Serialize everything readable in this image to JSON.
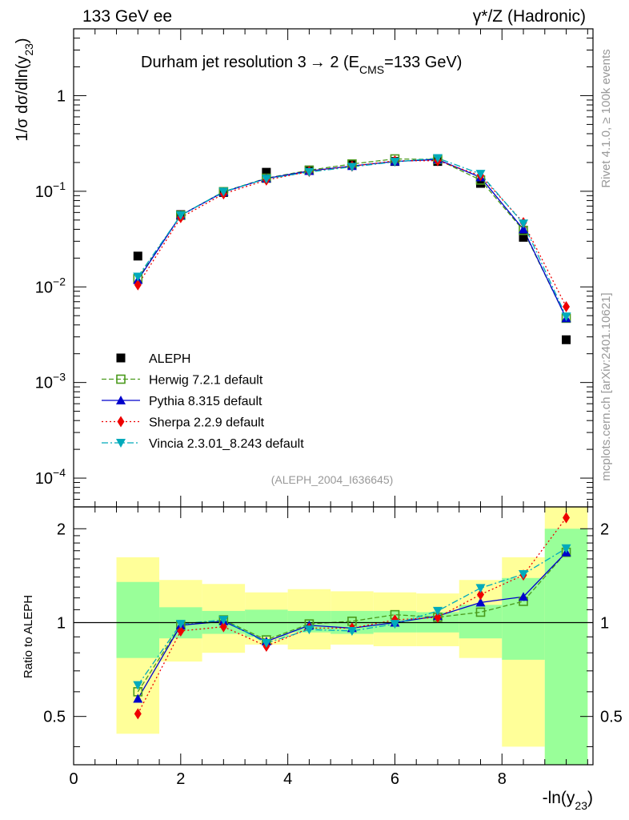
{
  "header": {
    "left": "133 GeV ee",
    "right": "γ*/Z (Hadronic)"
  },
  "side_labels": {
    "rivet": "Rivet 4.1.0, ≥ 100k events",
    "mcplots": "mcplots.cern.ch [arXiv:2401.10621]"
  },
  "analysis_id": "(ALEPH_2004_I636645)",
  "colors": {
    "aleph": "#000000",
    "herwig": "#4a9a1c",
    "pythia": "#0000cc",
    "sherpa": "#ee0000",
    "vincia": "#00aabb",
    "band_inner": "#99ff99",
    "band_outer": "#ffff99"
  },
  "chart_data": [
    {
      "type": "scatter",
      "panel": "main",
      "title_main": "Durham jet resolution 3",
      "title_arrow": "→",
      "title_tail": " 2 (E",
      "title_sub": "CMS",
      "title_end": "=133 GeV)",
      "ylabel_main": "1/σ  dσ/dln(y",
      "ylabel_sub": "23",
      "ylabel_end": ")",
      "yscale": "log",
      "xlim": [
        0,
        9.7
      ],
      "ylim": [
        5e-05,
        5
      ],
      "y_ticks": [
        {
          "value": 0.0001,
          "base": "10",
          "exp": "−4"
        },
        {
          "value": 0.001,
          "base": "10",
          "exp": "−3"
        },
        {
          "value": 0.01,
          "base": "10",
          "exp": "−2"
        },
        {
          "value": 0.1,
          "base": "10",
          "exp": "−1"
        },
        {
          "value": 1,
          "base": "1",
          "exp": ""
        }
      ],
      "x": [
        1.2,
        2.0,
        2.8,
        3.6,
        4.4,
        5.2,
        6.0,
        6.8,
        7.6,
        8.4,
        9.2
      ],
      "series": [
        {
          "name": "ALEPH",
          "key": "aleph",
          "values": [
            0.021,
            0.057,
            0.097,
            0.158,
            0.167,
            0.19,
            0.205,
            0.205,
            0.121,
            0.033,
            0.0028
          ]
        },
        {
          "name": "Herwig 7.2.1 default",
          "key": "herwig",
          "values": [
            0.0122,
            0.056,
            0.099,
            0.137,
            0.166,
            0.193,
            0.218,
            0.215,
            0.131,
            0.039,
            0.0047
          ]
        },
        {
          "name": "Pythia 8.315 default",
          "key": "pythia",
          "values": [
            0.0118,
            0.056,
            0.098,
            0.136,
            0.163,
            0.184,
            0.205,
            0.215,
            0.14,
            0.04,
            0.0047
          ]
        },
        {
          "name": "Sherpa 2.2.9 default",
          "key": "sherpa",
          "values": [
            0.0105,
            0.053,
            0.094,
            0.131,
            0.161,
            0.183,
            0.208,
            0.209,
            0.146,
            0.047,
            0.0062
          ]
        },
        {
          "name": "Vincia 2.3.01_8.243 default",
          "key": "vincia",
          "values": [
            0.0128,
            0.056,
            0.099,
            0.135,
            0.159,
            0.18,
            0.203,
            0.222,
            0.152,
            0.046,
            0.0049
          ]
        }
      ]
    },
    {
      "type": "scatter",
      "panel": "ratio",
      "ylabel": "Ratio to ALEPH",
      "xlabel_main": "-ln(y",
      "xlabel_sub": "23",
      "xlabel_end": ")",
      "xlim": [
        0,
        9.7
      ],
      "ylim": [
        0.35,
        2.35
      ],
      "x_ticks": [
        0,
        2,
        4,
        6,
        8
      ],
      "y_ticks": [
        0.5,
        1,
        2
      ],
      "reference_line": 1,
      "x": [
        1.2,
        2.0,
        2.8,
        3.6,
        4.4,
        5.2,
        6.0,
        6.8,
        7.6,
        8.4,
        9.2
      ],
      "bin_edges": [
        0.8,
        1.6,
        2.4,
        3.2,
        4.0,
        4.8,
        5.6,
        6.4,
        7.2,
        8.0,
        8.8,
        9.6
      ],
      "band_inner": [
        [
          0.77,
          1.35
        ],
        [
          0.89,
          1.12
        ],
        [
          0.92,
          1.09
        ],
        [
          0.9,
          1.1
        ],
        [
          0.93,
          1.09
        ],
        [
          0.92,
          1.09
        ],
        [
          0.93,
          1.09
        ],
        [
          0.93,
          1.08
        ],
        [
          0.89,
          1.14
        ],
        [
          0.76,
          1.39
        ],
        [
          0.35,
          2.0
        ]
      ],
      "band_outer": [
        [
          0.44,
          1.62
        ],
        [
          0.75,
          1.37
        ],
        [
          0.8,
          1.33
        ],
        [
          0.85,
          1.25
        ],
        [
          0.82,
          1.28
        ],
        [
          0.85,
          1.26
        ],
        [
          0.84,
          1.25
        ],
        [
          0.84,
          1.24
        ],
        [
          0.77,
          1.37
        ],
        [
          0.4,
          1.62
        ],
        [
          0.35,
          2.35
        ]
      ],
      "series": [
        {
          "name": "Herwig 7.2.1 default",
          "key": "herwig",
          "values": [
            0.6,
            0.98,
            1.02,
            0.88,
            0.99,
            1.01,
            1.06,
            1.04,
            1.08,
            1.17,
            1.68
          ]
        },
        {
          "name": "Pythia 8.315 default",
          "key": "pythia",
          "values": [
            0.57,
            0.98,
            1.01,
            0.87,
            0.98,
            0.96,
            1.0,
            1.05,
            1.16,
            1.21,
            1.68
          ]
        },
        {
          "name": "Sherpa 2.2.9 default",
          "key": "sherpa",
          "values": [
            0.51,
            0.94,
            0.97,
            0.84,
            0.96,
            0.96,
            1.02,
            1.04,
            1.23,
            1.42,
            2.17
          ]
        },
        {
          "name": "Vincia 2.3.01_8.243 default",
          "key": "vincia",
          "values": [
            0.63,
            0.99,
            1.02,
            0.86,
            0.95,
            0.94,
            0.99,
            1.09,
            1.29,
            1.43,
            1.73
          ]
        }
      ]
    }
  ]
}
